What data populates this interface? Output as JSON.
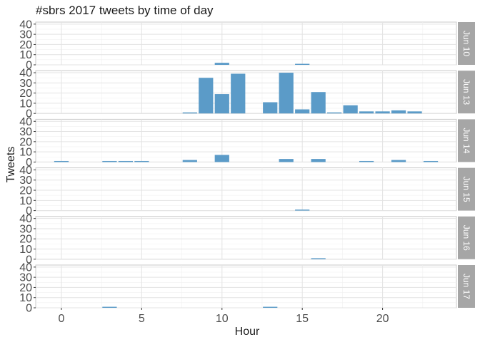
{
  "chart_data": {
    "type": "bar",
    "title": "#sbrs 2017 tweets by time of day",
    "xlabel": "Hour",
    "ylabel": "Tweets",
    "xlim": [
      -1.6,
      24.6
    ],
    "ylim": [
      0,
      42
    ],
    "x_ticks": [
      0,
      5,
      10,
      15,
      20
    ],
    "y_ticks": [
      0,
      10,
      20,
      30,
      40
    ],
    "grid": true,
    "bar_color": "#5b9bc8",
    "strip_color": "#a6a6a6",
    "panels": [
      {
        "label": "Jun 10",
        "bars": [
          {
            "hour": 10,
            "tweets": 2
          },
          {
            "hour": 15,
            "tweets": 1
          }
        ]
      },
      {
        "label": "Jun 13",
        "bars": [
          {
            "hour": 8,
            "tweets": 1
          },
          {
            "hour": 9,
            "tweets": 35
          },
          {
            "hour": 10,
            "tweets": 19
          },
          {
            "hour": 11,
            "tweets": 39
          },
          {
            "hour": 13,
            "tweets": 11
          },
          {
            "hour": 14,
            "tweets": 40
          },
          {
            "hour": 15,
            "tweets": 4
          },
          {
            "hour": 16,
            "tweets": 21
          },
          {
            "hour": 17,
            "tweets": 1
          },
          {
            "hour": 18,
            "tweets": 8
          },
          {
            "hour": 19,
            "tweets": 2
          },
          {
            "hour": 20,
            "tweets": 2
          },
          {
            "hour": 21,
            "tweets": 3
          },
          {
            "hour": 22,
            "tweets": 2
          }
        ]
      },
      {
        "label": "Jun 14",
        "bars": [
          {
            "hour": 0,
            "tweets": 1
          },
          {
            "hour": 3,
            "tweets": 1
          },
          {
            "hour": 4,
            "tweets": 1
          },
          {
            "hour": 5,
            "tweets": 1
          },
          {
            "hour": 8,
            "tweets": 2
          },
          {
            "hour": 10,
            "tweets": 7
          },
          {
            "hour": 14,
            "tweets": 3
          },
          {
            "hour": 16,
            "tweets": 3
          },
          {
            "hour": 19,
            "tweets": 1
          },
          {
            "hour": 21,
            "tweets": 2
          },
          {
            "hour": 23,
            "tweets": 1
          }
        ]
      },
      {
        "label": "Jun 15",
        "bars": [
          {
            "hour": 15,
            "tweets": 1
          }
        ]
      },
      {
        "label": "Jun 16",
        "bars": [
          {
            "hour": 16,
            "tweets": 1
          }
        ]
      },
      {
        "label": "Jun 17",
        "bars": [
          {
            "hour": 3,
            "tweets": 1
          },
          {
            "hour": 13,
            "tweets": 1
          }
        ]
      }
    ]
  }
}
